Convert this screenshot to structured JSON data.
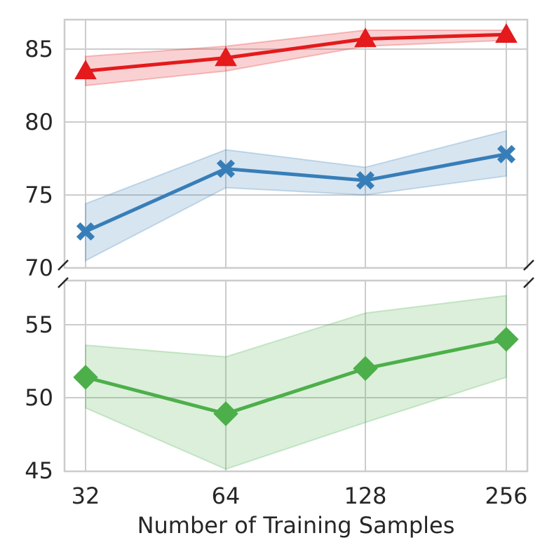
{
  "chart_data": {
    "type": "line",
    "title": "",
    "xlabel": "Number of Training Samples",
    "ylabel": "",
    "x_categories": [
      "32",
      "64",
      "128",
      "256"
    ],
    "broken_y_axis": true,
    "panels": [
      {
        "name": "upper",
        "ylim": [
          70,
          87
        ],
        "yticks": [
          "70",
          "75",
          "80",
          "85"
        ],
        "grid": true
      },
      {
        "name": "lower",
        "ylim": [
          45,
          57
        ],
        "yticks": [
          "45",
          "50",
          "55"
        ],
        "grid": true
      }
    ],
    "series": [
      {
        "color": "#e41a1c",
        "marker": "triangle",
        "panel": "upper",
        "values": [
          83.5,
          84.4,
          85.7,
          86.0
        ],
        "lower": [
          82.5,
          83.5,
          85.2,
          85.6
        ],
        "upper": [
          84.5,
          85.2,
          86.3,
          86.3
        ]
      },
      {
        "color": "#377eb8",
        "marker": "x",
        "panel": "upper",
        "values": [
          72.5,
          76.8,
          76.0,
          77.8
        ],
        "lower": [
          70.5,
          75.5,
          75.0,
          76.3
        ],
        "upper": [
          74.4,
          78.1,
          76.9,
          79.4
        ]
      },
      {
        "color": "#4daf4a",
        "marker": "diamond",
        "panel": "lower",
        "values": [
          51.4,
          48.9,
          52.0,
          54.0
        ],
        "lower": [
          49.3,
          45.1,
          48.3,
          51.4
        ],
        "upper": [
          53.6,
          52.8,
          55.8,
          57.0
        ]
      }
    ]
  }
}
